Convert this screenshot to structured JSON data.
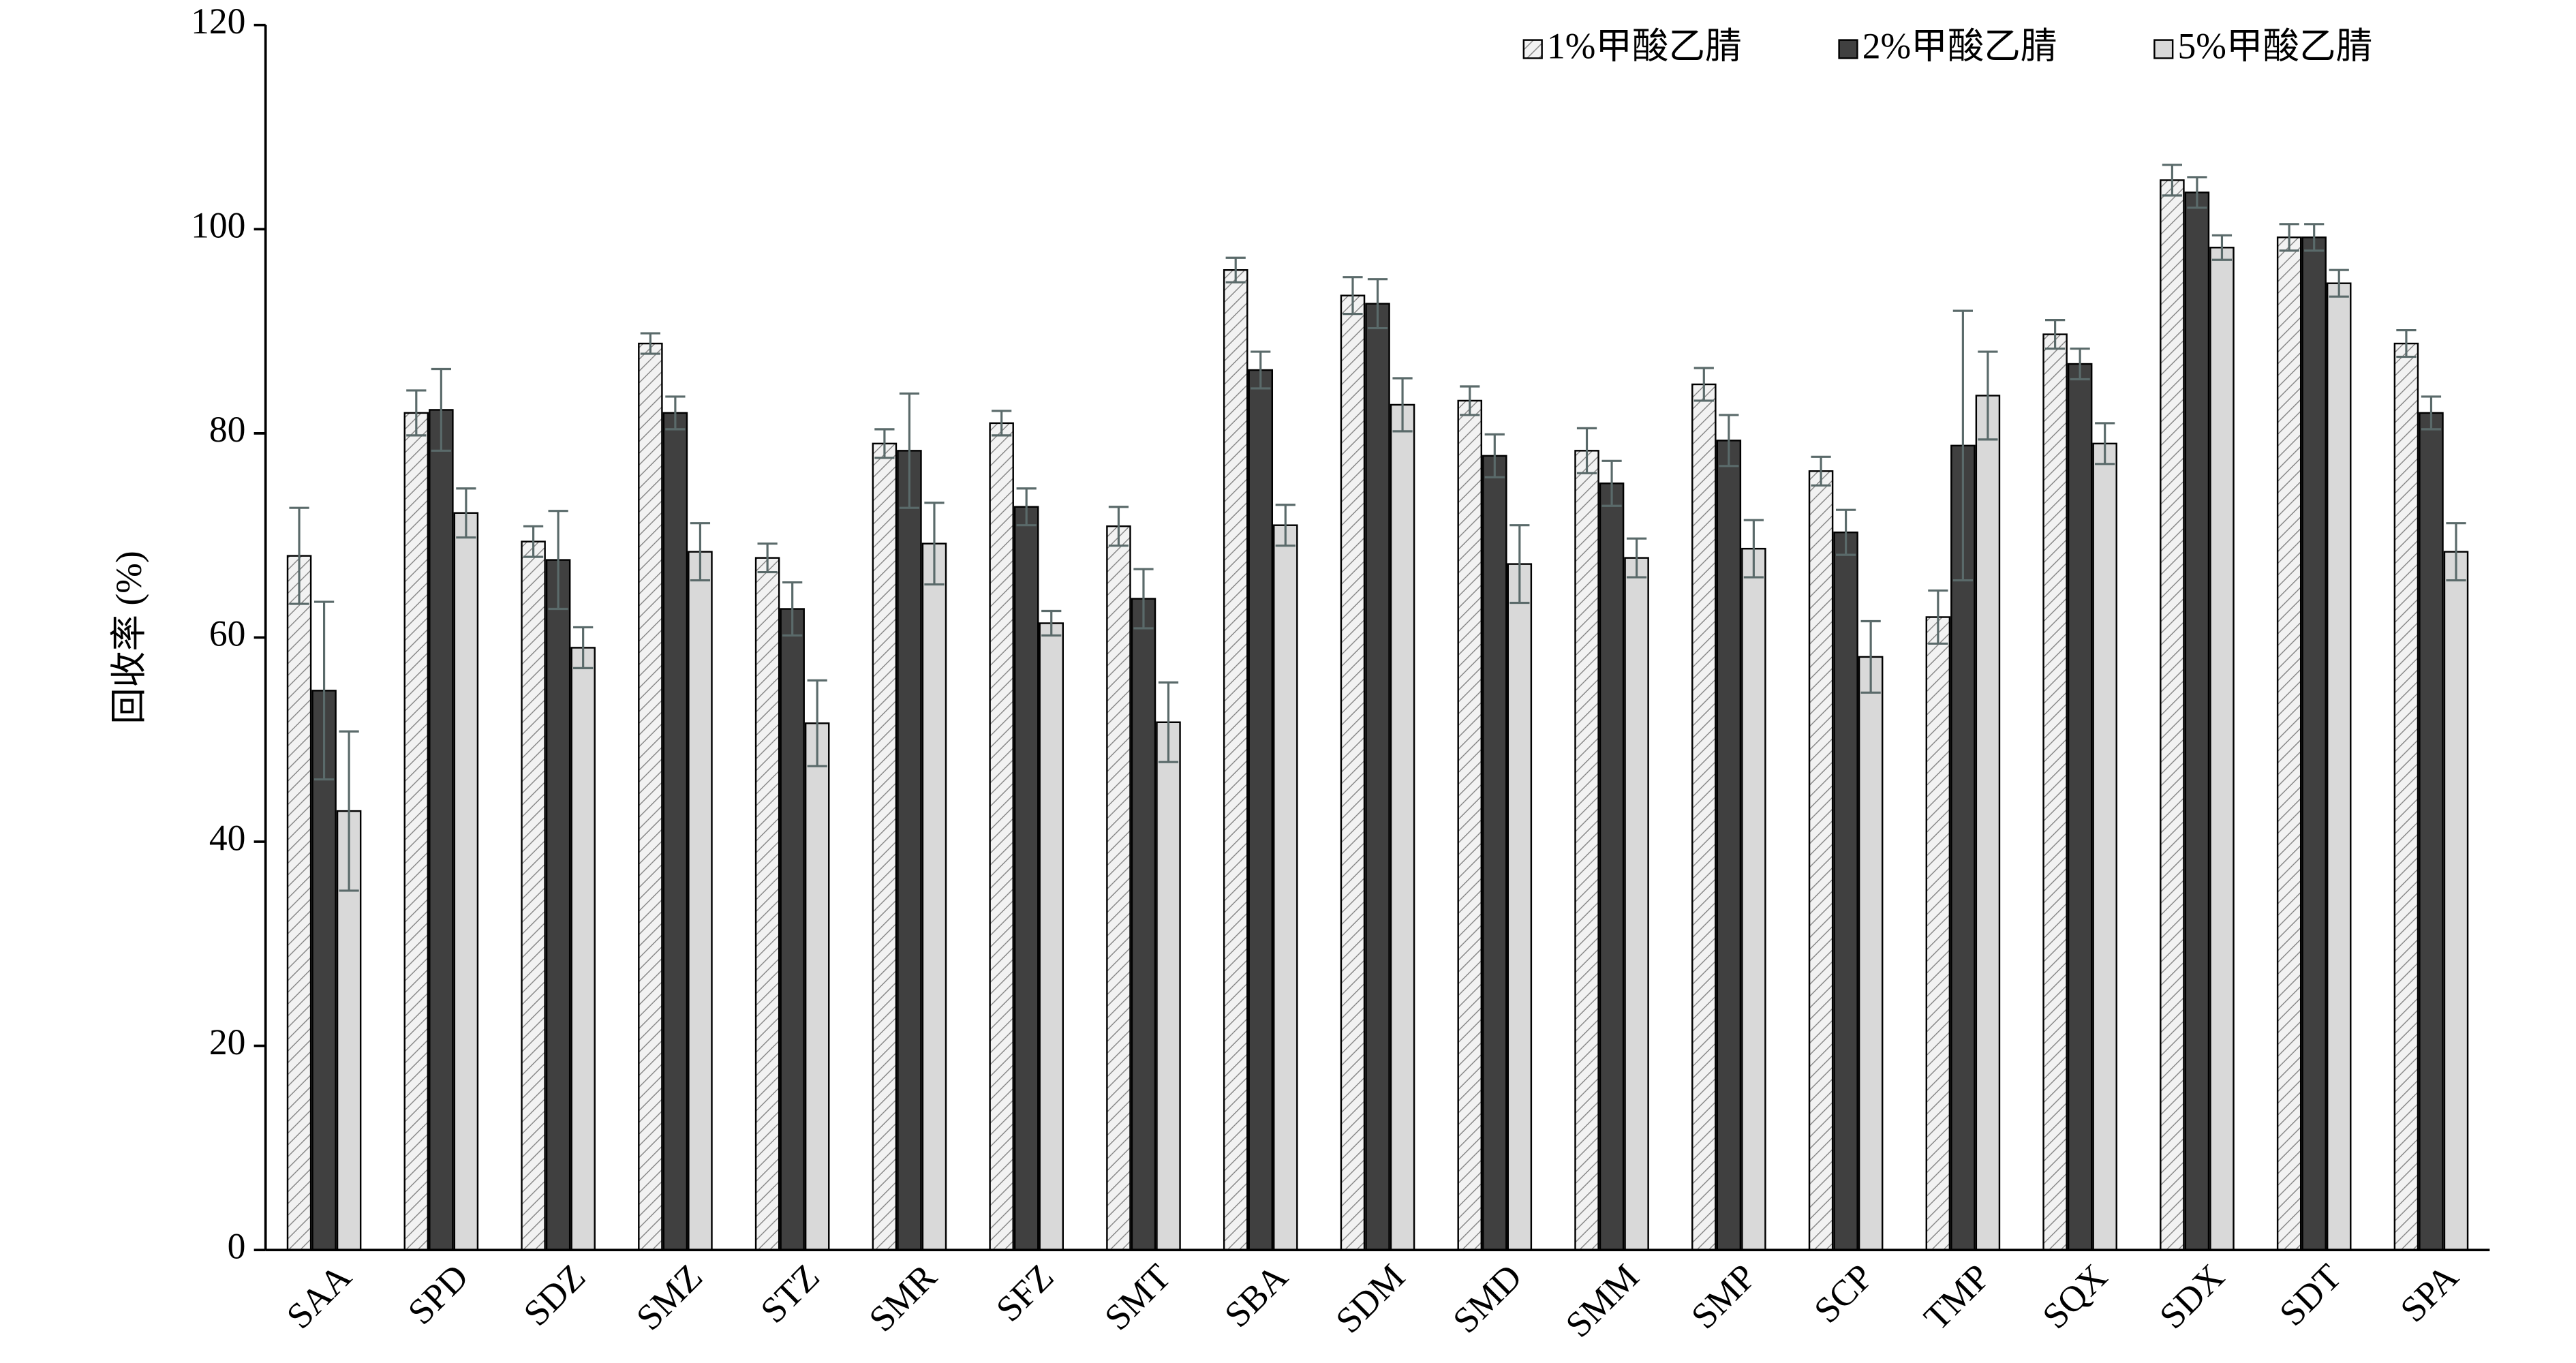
{
  "chart_data": {
    "type": "bar",
    "y_label": "回收率 (%)",
    "categories": [
      "SAA",
      "SPD",
      "SDZ",
      "SMZ",
      "STZ",
      "SMR",
      "SFZ",
      "SMT",
      "SBA",
      "SDM",
      "SMD",
      "SMM",
      "SMP",
      "SCP",
      "TMP",
      "SQX",
      "SDX",
      "SDT",
      "SPA"
    ],
    "series": [
      {
        "name": "1%甲酸乙腈",
        "color": "#e6e6e6",
        "hatch": true,
        "values": [
          68,
          82,
          69.4,
          88.8,
          67.8,
          79,
          81,
          70.9,
          96,
          93.5,
          83.2,
          78.3,
          84.8,
          76.3,
          62,
          89.7,
          104.8,
          99.2,
          88.8
        ],
        "errors": [
          4.7,
          2.2,
          1.5,
          1,
          1.4,
          1.4,
          1.2,
          1.9,
          1.2,
          1.8,
          1.4,
          2.2,
          1.6,
          1.4,
          2.6,
          1.4,
          1.5,
          1.3,
          1.3
        ]
      },
      {
        "name": "2%甲酸乙腈",
        "color": "#404040",
        "values": [
          54.8,
          82.3,
          67.6,
          82,
          62.8,
          78.3,
          72.8,
          63.8,
          86.2,
          92.7,
          77.8,
          75.1,
          79.3,
          70.3,
          78.8,
          86.8,
          103.6,
          99.2,
          82
        ],
        "errors": [
          8.7,
          4,
          4.8,
          1.6,
          2.6,
          5.6,
          1.8,
          2.9,
          1.8,
          2.4,
          2.1,
          2.2,
          2.5,
          2.2,
          13.2,
          1.5,
          1.5,
          1.3,
          1.6
        ]
      },
      {
        "name": "5%甲酸乙腈",
        "color": "#d9d9d9",
        "values": [
          43,
          72.2,
          59,
          68.4,
          51.6,
          69.2,
          61.4,
          51.7,
          71,
          82.8,
          67.2,
          67.8,
          68.7,
          58.1,
          83.7,
          79,
          98.2,
          94.7,
          68.4
        ],
        "errors": [
          7.8,
          2.4,
          2,
          2.8,
          4.2,
          4,
          1.2,
          3.9,
          2,
          2.6,
          3.8,
          1.9,
          2.8,
          3.5,
          4.3,
          2,
          1.2,
          1.3,
          2.8
        ]
      }
    ],
    "ylim": [
      0,
      120
    ],
    "yticks": [
      0,
      20,
      40,
      60,
      80,
      100,
      120
    ],
    "legend": "top-right"
  }
}
